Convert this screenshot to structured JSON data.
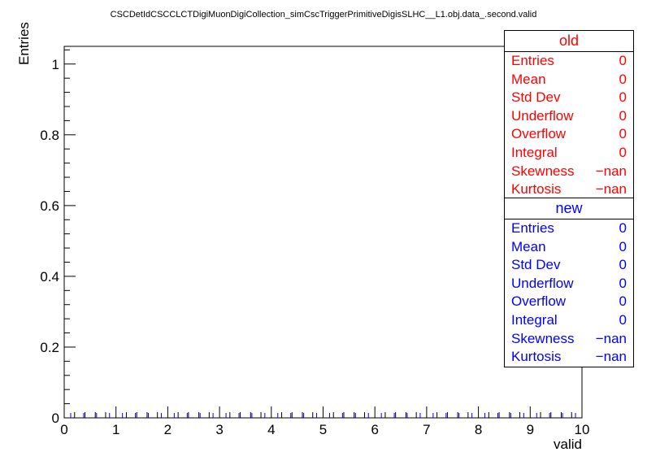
{
  "title": "CSCDetIdCSCCLCTDigiMuonDigiCollection_simCscTriggerPrimitiveDigisSLHC__L1.obj.data_.second.valid",
  "chart_data": {
    "type": "bar",
    "xlabel": "valid",
    "ylabel": "Entries",
    "xlim": [
      0,
      10
    ],
    "ylim": [
      0,
      1.05
    ],
    "x_ticks": [
      "0",
      "1",
      "2",
      "3",
      "4",
      "5",
      "6",
      "7",
      "8",
      "9",
      "10"
    ],
    "y_ticks": [
      "0",
      "0.2",
      "0.4",
      "0.6",
      "0.8",
      "1"
    ],
    "series": [
      {
        "name": "old",
        "values": [],
        "color": "#ff0000"
      },
      {
        "name": "new",
        "values": [],
        "color": "#0000ff"
      }
    ]
  },
  "stats_old": {
    "title": "old",
    "rows": [
      {
        "label": "Entries",
        "value": "0"
      },
      {
        "label": "Mean",
        "value": "0"
      },
      {
        "label": "Std Dev",
        "value": "0"
      },
      {
        "label": "Underflow",
        "value": "0"
      },
      {
        "label": "Overflow",
        "value": "0"
      },
      {
        "label": "Integral",
        "value": "0"
      },
      {
        "label": "Skewness",
        "value": "−nan"
      },
      {
        "label": "Kurtosis",
        "value": "−nan"
      }
    ]
  },
  "stats_new": {
    "title": "new",
    "rows": [
      {
        "label": "Entries",
        "value": "0"
      },
      {
        "label": "Mean",
        "value": "0"
      },
      {
        "label": "Std Dev",
        "value": "0"
      },
      {
        "label": "Underflow",
        "value": "0"
      },
      {
        "label": "Overflow",
        "value": "0"
      },
      {
        "label": "Integral",
        "value": "0"
      },
      {
        "label": "Skewness",
        "value": "−nan"
      },
      {
        "label": "Kurtosis",
        "value": "−nan"
      }
    ]
  }
}
